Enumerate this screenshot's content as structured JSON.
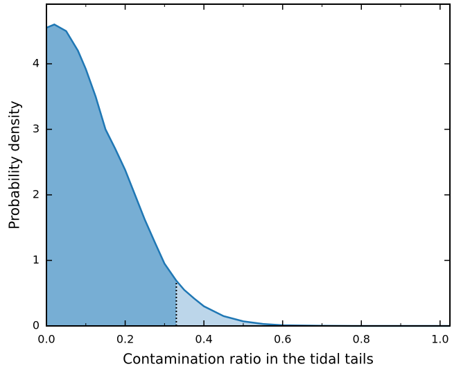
{
  "chart_data": {
    "type": "area",
    "xlabel": "Contamination ratio in the tidal tails",
    "ylabel": "Probability density",
    "x": [
      0,
      0.02,
      0.05,
      0.08,
      0.1,
      0.125,
      0.15,
      0.175,
      0.2,
      0.225,
      0.25,
      0.275,
      0.3,
      0.33,
      0.35,
      0.375,
      0.4,
      0.45,
      0.5,
      0.55,
      0.6,
      0.7,
      0.8,
      0.9,
      1.0,
      1.025
    ],
    "values": [
      4.55,
      4.6,
      4.5,
      4.2,
      3.92,
      3.5,
      3.0,
      2.7,
      2.38,
      2.0,
      1.62,
      1.28,
      0.95,
      0.69,
      0.55,
      0.42,
      0.3,
      0.15,
      0.07,
      0.03,
      0.01,
      0.002,
      0,
      0,
      0,
      0
    ],
    "threshold": 0.33,
    "color": "#1f77b4",
    "fill_color": "#77aed4",
    "tail_fill_color": "#bcd6ea",
    "xlim": [
      0,
      1.025
    ],
    "ylim": [
      0,
      4.91
    ],
    "xticks": [
      {
        "value": 0,
        "label": "0.0"
      },
      0.2,
      0.4,
      0.6,
      0.8,
      {
        "value": 1,
        "label": "1.0"
      }
    ],
    "xminor_ticks": [
      0.1,
      0.3,
      0.5,
      0.7,
      0.9
    ],
    "yticks": [
      0,
      1,
      2,
      3,
      4
    ]
  }
}
